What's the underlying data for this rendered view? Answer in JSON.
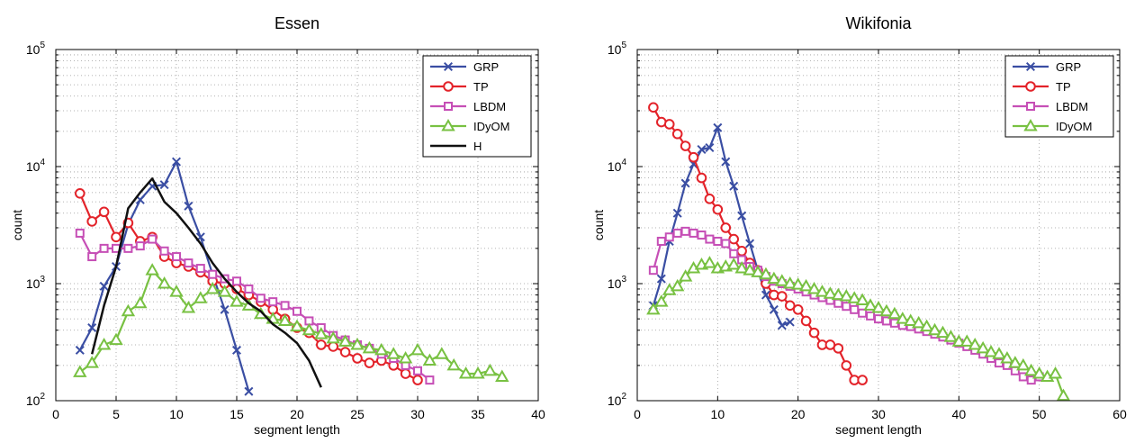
{
  "chart_data": [
    {
      "type": "line",
      "title": "Essen",
      "xlabel": "segment length",
      "ylabel": "count",
      "xlim": [
        0,
        40
      ],
      "ylim": [
        100,
        100000
      ],
      "yscale": "log",
      "grid": true,
      "legend_position": "top-right",
      "xticks": [
        "0",
        "5",
        "10",
        "15",
        "20",
        "25",
        "30",
        "35",
        "40"
      ],
      "yticks": [
        {
          "base": "10",
          "exp": "2"
        },
        {
          "base": "10",
          "exp": "3"
        },
        {
          "base": "10",
          "exp": "4"
        },
        {
          "base": "10",
          "exp": "5"
        }
      ],
      "series": [
        {
          "name": "GRP",
          "color": "#3a4ea3",
          "marker": "x",
          "x": [
            2,
            3,
            4,
            5,
            6,
            7,
            8,
            9,
            10,
            11,
            12,
            13,
            14,
            15,
            16
          ],
          "y": [
            270,
            420,
            950,
            1400,
            3200,
            5200,
            6800,
            7000,
            11000,
            4600,
            2500,
            1200,
            600,
            270,
            120
          ]
        },
        {
          "name": "TP",
          "color": "#e3232a",
          "marker": "circle",
          "x": [
            2,
            3,
            4,
            5,
            6,
            7,
            8,
            9,
            10,
            11,
            12,
            13,
            14,
            15,
            16,
            17,
            18,
            19,
            20,
            21,
            22,
            23,
            24,
            25,
            26,
            27,
            28,
            29,
            30
          ],
          "y": [
            5900,
            3400,
            4100,
            2500,
            3300,
            2300,
            2500,
            1700,
            1500,
            1400,
            1250,
            1050,
            1000,
            900,
            800,
            700,
            600,
            500,
            420,
            380,
            300,
            290,
            260,
            230,
            210,
            220,
            200,
            170,
            150
          ]
        },
        {
          "name": "LBDM",
          "color": "#c64fb6",
          "marker": "square",
          "x": [
            2,
            3,
            4,
            5,
            6,
            7,
            8,
            9,
            10,
            11,
            12,
            13,
            14,
            15,
            16,
            17,
            18,
            19,
            20,
            21,
            22,
            23,
            24,
            25,
            26,
            27,
            28,
            29,
            30,
            31
          ],
          "y": [
            2700,
            1700,
            2000,
            2000,
            2000,
            2100,
            2400,
            1900,
            1700,
            1500,
            1350,
            1200,
            1100,
            1050,
            900,
            750,
            700,
            650,
            580,
            480,
            420,
            360,
            330,
            300,
            280,
            250,
            230,
            200,
            180,
            150
          ]
        },
        {
          "name": "IDyOM",
          "color": "#78c142",
          "marker": "triangle",
          "x": [
            2,
            3,
            4,
            5,
            6,
            7,
            8,
            9,
            10,
            11,
            12,
            13,
            14,
            15,
            16,
            17,
            18,
            19,
            20,
            21,
            22,
            23,
            24,
            25,
            26,
            27,
            28,
            29,
            30,
            31,
            32,
            33,
            34,
            35,
            36,
            37
          ],
          "y": [
            175,
            210,
            300,
            330,
            580,
            680,
            1300,
            1000,
            850,
            620,
            750,
            900,
            850,
            700,
            650,
            550,
            500,
            480,
            430,
            400,
            370,
            340,
            320,
            300,
            280,
            270,
            250,
            230,
            270,
            220,
            250,
            200,
            170,
            170,
            180,
            160
          ]
        },
        {
          "name": "H",
          "color": "#111111",
          "marker": "none",
          "x": [
            3,
            4,
            5,
            6,
            7,
            8,
            9,
            10,
            11,
            12,
            13,
            14,
            15,
            16,
            17,
            18,
            19,
            20,
            21,
            22
          ],
          "y": [
            250,
            650,
            1400,
            4400,
            6000,
            7900,
            5000,
            4000,
            3000,
            2200,
            1500,
            1100,
            850,
            680,
            580,
            450,
            380,
            310,
            220,
            130
          ]
        }
      ]
    },
    {
      "type": "line",
      "title": "Wikifonia",
      "xlabel": "segment length",
      "ylabel": "count",
      "xlim": [
        0,
        60
      ],
      "ylim": [
        100,
        100000
      ],
      "yscale": "log",
      "grid": true,
      "legend_position": "top-right",
      "xticks": [
        "0",
        "10",
        "20",
        "30",
        "40",
        "50",
        "60"
      ],
      "yticks": [
        {
          "base": "10",
          "exp": "2"
        },
        {
          "base": "10",
          "exp": "3"
        },
        {
          "base": "10",
          "exp": "4"
        },
        {
          "base": "10",
          "exp": "5"
        }
      ],
      "series": [
        {
          "name": "GRP",
          "color": "#3a4ea3",
          "marker": "x",
          "x": [
            2,
            3,
            4,
            5,
            6,
            7,
            8,
            9,
            10,
            11,
            12,
            13,
            14,
            15,
            16,
            17,
            18,
            19
          ],
          "y": [
            650,
            1100,
            2300,
            4000,
            7200,
            10500,
            14000,
            14500,
            21500,
            11000,
            6800,
            3800,
            2200,
            1300,
            800,
            600,
            440,
            470
          ]
        },
        {
          "name": "TP",
          "color": "#e3232a",
          "marker": "circle",
          "x": [
            2,
            3,
            4,
            5,
            6,
            7,
            8,
            9,
            10,
            11,
            12,
            13,
            14,
            15,
            16,
            17,
            18,
            19,
            20,
            21,
            22,
            23,
            24,
            25,
            26,
            27,
            28
          ],
          "y": [
            32000,
            24000,
            23000,
            19000,
            15000,
            12000,
            8000,
            5300,
            4300,
            3000,
            2400,
            1900,
            1500,
            1300,
            1000,
            800,
            780,
            650,
            600,
            480,
            380,
            300,
            300,
            280,
            200,
            150,
            150
          ]
        },
        {
          "name": "LBDM",
          "color": "#c64fb6",
          "marker": "square",
          "x": [
            2,
            3,
            4,
            5,
            6,
            7,
            8,
            9,
            10,
            11,
            12,
            13,
            14,
            15,
            16,
            17,
            18,
            19,
            20,
            21,
            22,
            23,
            24,
            25,
            26,
            27,
            28,
            29,
            30,
            31,
            32,
            33,
            34,
            35,
            36,
            37,
            38,
            39,
            40,
            41,
            42,
            43,
            44,
            45,
            46,
            47,
            48,
            49,
            50
          ],
          "y": [
            1300,
            2300,
            2500,
            2700,
            2800,
            2700,
            2600,
            2400,
            2300,
            2200,
            1800,
            1600,
            1400,
            1300,
            1150,
            1050,
            1000,
            950,
            900,
            850,
            800,
            760,
            720,
            680,
            640,
            600,
            560,
            530,
            500,
            480,
            460,
            440,
            430,
            410,
            390,
            370,
            350,
            330,
            310,
            290,
            270,
            250,
            230,
            210,
            200,
            180,
            160,
            150,
            160
          ]
        },
        {
          "name": "IDyOM",
          "color": "#78c142",
          "marker": "triangle",
          "x": [
            2,
            3,
            4,
            5,
            6,
            7,
            8,
            9,
            10,
            11,
            12,
            13,
            14,
            15,
            16,
            17,
            18,
            19,
            20,
            21,
            22,
            23,
            24,
            25,
            26,
            27,
            28,
            29,
            30,
            31,
            32,
            33,
            34,
            35,
            36,
            37,
            38,
            39,
            40,
            41,
            42,
            43,
            44,
            45,
            46,
            47,
            48,
            49,
            50,
            51,
            52,
            53
          ],
          "y": [
            600,
            700,
            880,
            950,
            1150,
            1350,
            1450,
            1500,
            1350,
            1400,
            1450,
            1350,
            1300,
            1250,
            1200,
            1100,
            1050,
            1000,
            980,
            950,
            900,
            850,
            820,
            800,
            780,
            750,
            720,
            650,
            620,
            580,
            550,
            500,
            480,
            460,
            430,
            400,
            380,
            350,
            320,
            320,
            300,
            280,
            260,
            250,
            230,
            210,
            200,
            180,
            170,
            160,
            170,
            110
          ]
        }
      ]
    }
  ]
}
